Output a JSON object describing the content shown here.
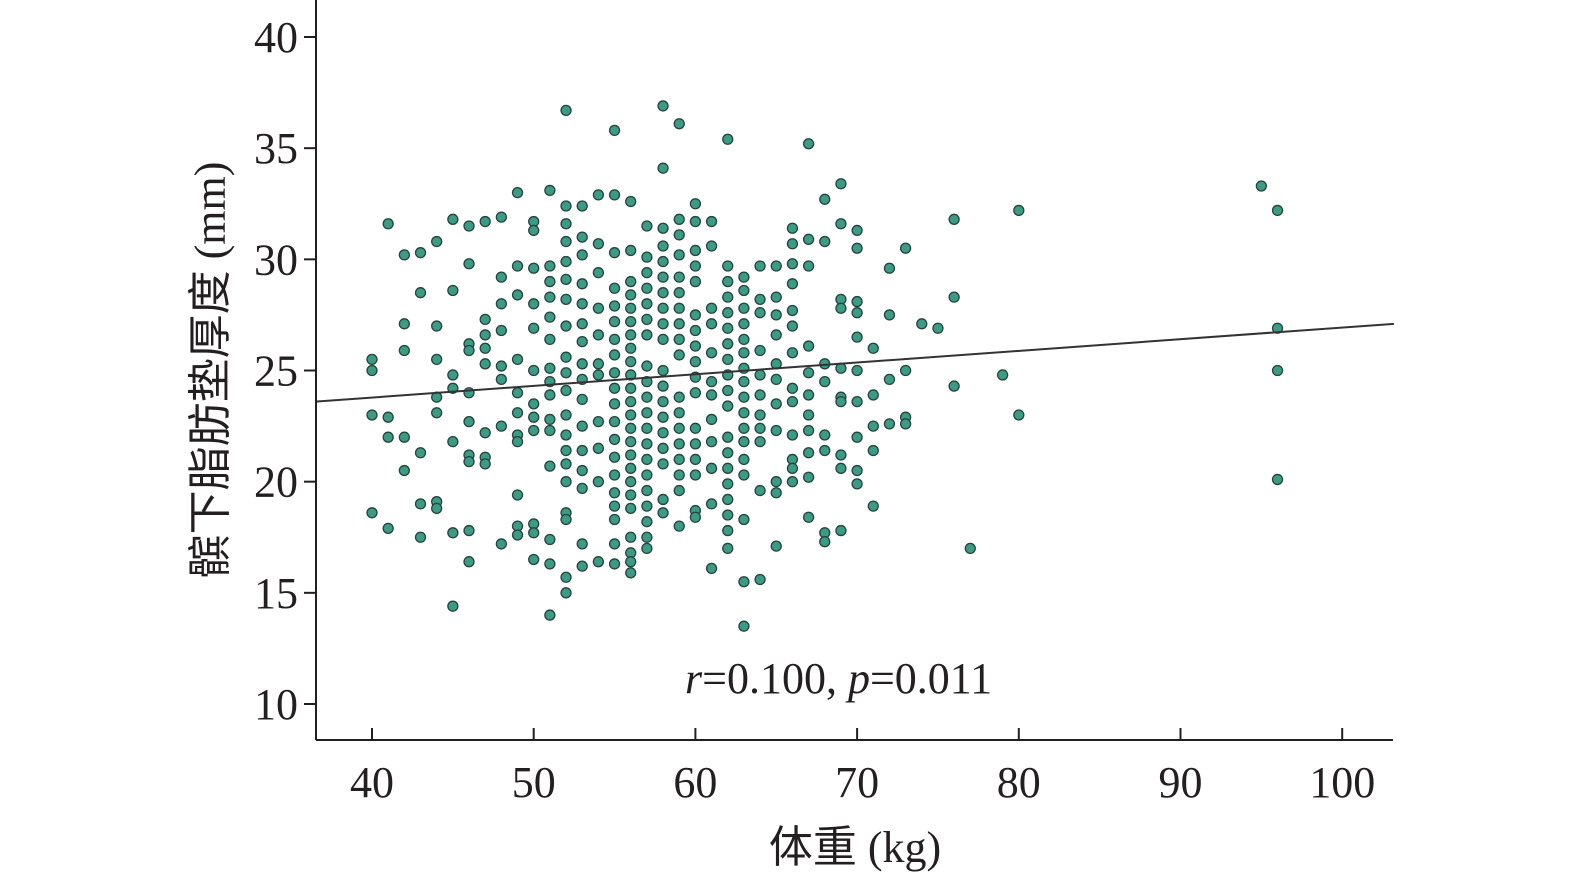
{
  "chart_data": {
    "type": "scatter",
    "title": "",
    "xlabel": "体重 (kg)",
    "ylabel": "髌下脂肪垫厚度 (mm)",
    "xlim": [
      36.5,
      103.2
    ],
    "ylim": [
      8.4,
      41.6
    ],
    "xticks": [
      40,
      50,
      60,
      70,
      80,
      90,
      100
    ],
    "yticks": [
      10,
      15,
      20,
      25,
      30,
      35,
      40
    ],
    "grid": false,
    "annotation": {
      "r_symbol": "r",
      "r_text": "=0.100, ",
      "p_symbol": "p",
      "p_text": "=0.011"
    },
    "regression_line": {
      "x": [
        36.5,
        103.2
      ],
      "y": [
        23.6,
        27.1
      ]
    },
    "colors": {
      "point_fill": "#3f9a85",
      "point_stroke": "#24443d",
      "line": "#333333",
      "axis": "#231f20"
    },
    "groups": [
      {
        "x": 40,
        "y": [
          25.5,
          25.0,
          23.0,
          18.6
        ]
      },
      {
        "x": 41,
        "y": [
          31.6,
          22.9,
          22.0,
          17.9
        ]
      },
      {
        "x": 42,
        "y": [
          30.2,
          27.1,
          25.9,
          22.0,
          20.5
        ]
      },
      {
        "x": 43,
        "y": [
          30.3,
          28.5,
          21.3,
          19.0,
          17.5
        ]
      },
      {
        "x": 44,
        "y": [
          30.8,
          27.0,
          25.5,
          23.8,
          23.1,
          19.1,
          18.8
        ]
      },
      {
        "x": 45,
        "y": [
          31.8,
          28.6,
          24.8,
          24.2,
          21.8,
          17.7,
          14.4
        ]
      },
      {
        "x": 46,
        "y": [
          31.5,
          29.8,
          26.2,
          25.9,
          24.0,
          22.7,
          21.2,
          20.9,
          17.8,
          16.4
        ]
      },
      {
        "x": 47,
        "y": [
          31.7,
          27.3,
          26.6,
          26.0,
          25.3,
          22.2,
          21.1,
          20.8
        ]
      },
      {
        "x": 48,
        "y": [
          31.9,
          29.2,
          28.0,
          26.8,
          25.2,
          24.6,
          22.5,
          17.2
        ]
      },
      {
        "x": 49,
        "y": [
          33.0,
          29.7,
          28.4,
          25.5,
          24.0,
          23.1,
          22.1,
          21.8,
          19.4,
          18.0,
          17.6
        ]
      },
      {
        "x": 50,
        "y": [
          31.7,
          31.3,
          29.6,
          28.0,
          26.9,
          25.0,
          23.5,
          22.9,
          22.3,
          18.1,
          17.7,
          16.5
        ]
      },
      {
        "x": 51,
        "y": [
          33.1,
          29.7,
          29.0,
          28.3,
          27.4,
          26.4,
          25.1,
          24.5,
          23.9,
          22.8,
          22.3,
          20.7,
          17.4,
          16.3,
          14.0
        ]
      },
      {
        "x": 52,
        "y": [
          36.7,
          32.4,
          31.6,
          30.8,
          29.9,
          29.1,
          28.2,
          27.0,
          25.6,
          24.9,
          24.1,
          23.0,
          22.1,
          21.4,
          20.8,
          20.0,
          18.6,
          18.3,
          15.7,
          15.0
        ]
      },
      {
        "x": 53,
        "y": [
          32.4,
          31.0,
          30.2,
          28.9,
          28.0,
          27.1,
          26.3,
          25.3,
          24.6,
          23.7,
          22.5,
          21.4,
          20.5,
          19.7,
          17.2,
          16.2
        ]
      },
      {
        "x": 54,
        "y": [
          32.9,
          30.7,
          29.4,
          27.8,
          26.6,
          25.3,
          24.8,
          22.7,
          21.5,
          20.0,
          16.4
        ]
      },
      {
        "x": 55,
        "y": [
          35.8,
          32.9,
          30.3,
          28.7,
          27.9,
          27.2,
          26.4,
          25.7,
          24.9,
          24.2,
          23.5,
          22.7,
          21.9,
          21.1,
          20.3,
          19.5,
          18.9,
          18.3,
          17.2,
          16.3
        ]
      },
      {
        "x": 56,
        "y": [
          32.6,
          30.4,
          29.0,
          28.4,
          27.8,
          27.2,
          26.6,
          26.0,
          25.4,
          24.8,
          24.2,
          23.6,
          23.0,
          22.4,
          21.8,
          21.2,
          20.6,
          20.0,
          19.4,
          18.8,
          17.5,
          16.8,
          16.4,
          15.9
        ]
      },
      {
        "x": 57,
        "y": [
          31.5,
          30.1,
          29.4,
          28.7,
          28.0,
          27.3,
          26.6,
          25.2,
          24.5,
          23.8,
          23.1,
          22.4,
          21.7,
          21.0,
          20.3,
          19.6,
          18.9,
          18.2,
          17.5,
          17.0
        ]
      },
      {
        "x": 58,
        "y": [
          36.9,
          34.1,
          31.4,
          30.6,
          29.9,
          29.2,
          28.5,
          27.8,
          27.1,
          26.4,
          25.0,
          24.3,
          23.6,
          22.9,
          22.2,
          21.5,
          20.8,
          19.2,
          18.6
        ]
      },
      {
        "x": 59,
        "y": [
          36.1,
          31.8,
          31.1,
          30.2,
          29.2,
          28.5,
          27.8,
          27.1,
          26.4,
          25.7,
          23.8,
          23.1,
          22.4,
          21.7,
          21.0,
          20.3,
          19.6,
          18.0
        ]
      },
      {
        "x": 60,
        "y": [
          32.5,
          31.7,
          30.4,
          29.7,
          29.0,
          27.5,
          26.8,
          26.1,
          25.4,
          24.7,
          24.0,
          22.4,
          21.7,
          21.0,
          20.3,
          18.7,
          18.4
        ]
      },
      {
        "x": 61,
        "y": [
          31.7,
          30.6,
          27.8,
          27.1,
          25.8,
          24.5,
          23.9,
          22.8,
          21.8,
          20.6,
          19.0,
          16.1
        ]
      },
      {
        "x": 62,
        "y": [
          35.4,
          29.7,
          29.0,
          28.3,
          27.6,
          26.9,
          26.2,
          25.5,
          24.8,
          24.1,
          23.4,
          22.0,
          21.3,
          20.6,
          19.9,
          19.2,
          18.5,
          17.8,
          17.0
        ]
      },
      {
        "x": 63,
        "y": [
          29.2,
          28.6,
          27.8,
          27.1,
          26.4,
          25.8,
          25.1,
          24.5,
          23.8,
          23.1,
          22.4,
          21.8,
          21.0,
          20.3,
          18.3,
          15.5,
          13.5
        ]
      },
      {
        "x": 64,
        "y": [
          29.7,
          28.2,
          27.6,
          25.9,
          24.8,
          23.9,
          23.0,
          22.4,
          21.8,
          19.6,
          15.6
        ]
      },
      {
        "x": 65,
        "y": [
          29.7,
          28.3,
          27.5,
          26.6,
          25.3,
          24.6,
          23.5,
          22.3,
          20.0,
          19.5,
          17.1
        ]
      },
      {
        "x": 66,
        "y": [
          31.4,
          30.7,
          29.8,
          28.9,
          27.7,
          27.0,
          25.8,
          24.2,
          23.6,
          22.1,
          21.0,
          20.6,
          20.0
        ]
      },
      {
        "x": 67,
        "y": [
          35.2,
          30.9,
          29.7,
          26.1,
          24.9,
          23.9,
          23.0,
          22.3,
          21.3,
          20.2,
          18.4
        ]
      },
      {
        "x": 68,
        "y": [
          32.7,
          30.8,
          25.3,
          24.5,
          22.1,
          21.4,
          17.7,
          17.3
        ]
      },
      {
        "x": 69,
        "y": [
          33.4,
          31.6,
          28.2,
          27.8,
          25.1,
          23.8,
          23.6,
          21.2,
          20.6,
          17.8
        ]
      },
      {
        "x": 70,
        "y": [
          31.3,
          30.5,
          28.1,
          27.6,
          26.5,
          25.0,
          23.6,
          22.0,
          20.5,
          19.9
        ]
      },
      {
        "x": 71,
        "y": [
          26.0,
          23.9,
          22.5,
          21.4,
          18.9
        ]
      },
      {
        "x": 72,
        "y": [
          29.6,
          27.5,
          24.6,
          22.6
        ]
      },
      {
        "x": 73,
        "y": [
          30.5,
          25.0,
          22.9,
          22.6
        ]
      },
      {
        "x": 74,
        "y": [
          27.1
        ]
      },
      {
        "x": 75,
        "y": [
          26.9
        ]
      },
      {
        "x": 76,
        "y": [
          31.8,
          28.3,
          24.3
        ]
      },
      {
        "x": 77,
        "y": [
          17.0
        ]
      },
      {
        "x": 79,
        "y": [
          24.8
        ]
      },
      {
        "x": 80,
        "y": [
          32.2,
          23.0
        ]
      },
      {
        "x": 95,
        "y": [
          33.3
        ]
      },
      {
        "x": 96,
        "y": [
          32.2,
          26.9,
          25.0,
          20.1
        ]
      }
    ]
  }
}
